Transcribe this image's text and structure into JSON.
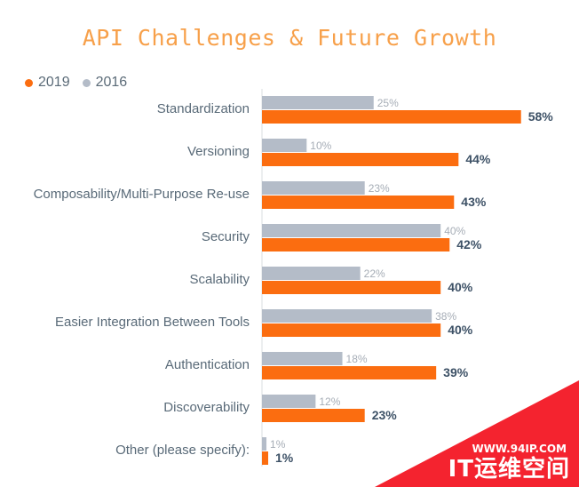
{
  "chart_data": {
    "type": "bar",
    "orientation": "horizontal",
    "title": "API Challenges & Future Growth",
    "categories": [
      "Standardization",
      "Versioning",
      "Composability/Multi-Purpose Re-use",
      "Security",
      "Scalability",
      "Easier Integration Between Tools",
      "Authentication",
      "Discoverability",
      "Other (please specify):"
    ],
    "series": [
      {
        "name": "2019",
        "color": "#fb6d10",
        "values": [
          58,
          44,
          43,
          42,
          40,
          40,
          39,
          23,
          1
        ],
        "labels": [
          "58%",
          "44%",
          "43%",
          "42%",
          "40%",
          "40%",
          "39%",
          "23%",
          "1%"
        ]
      },
      {
        "name": "2016",
        "color": "#b4bcc8",
        "values": [
          25,
          10,
          23,
          40,
          22,
          38,
          18,
          12,
          1
        ],
        "labels": [
          "25%",
          "10%",
          "23%",
          "40%",
          "22%",
          "38%",
          "18%",
          "12%",
          "1%"
        ]
      }
    ],
    "xlim": [
      0,
      60
    ],
    "grid": false,
    "legend_position": "top-left"
  },
  "watermark": {
    "url": "WWW.94IP.COM",
    "name": "IT运维空间",
    "color": "#f4232f"
  }
}
